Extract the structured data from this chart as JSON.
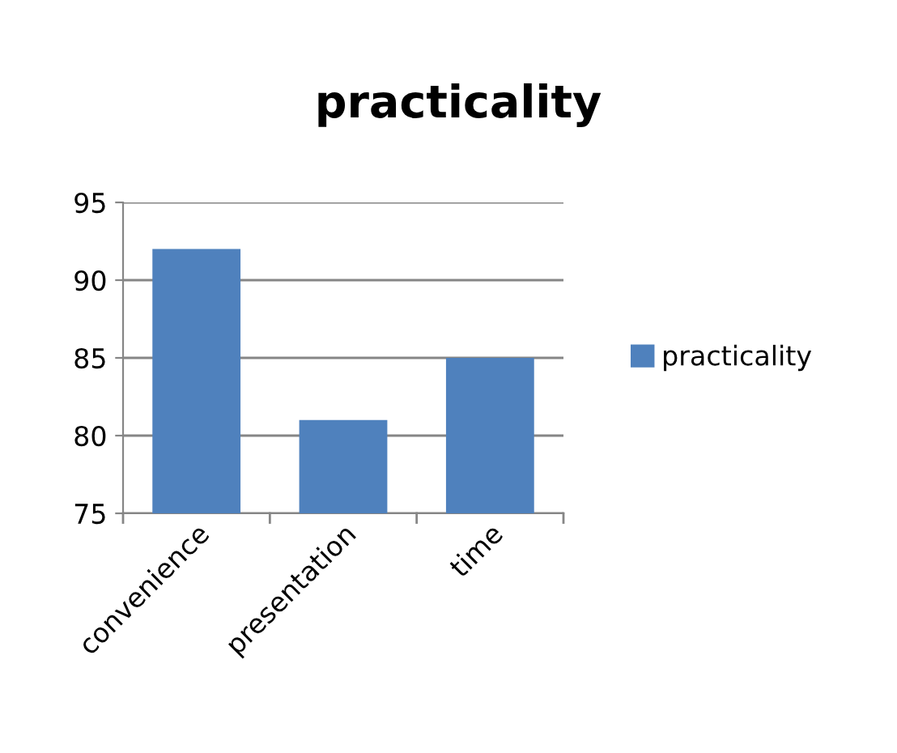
{
  "chart_data": {
    "type": "bar",
    "title": "practicality",
    "categories": [
      "convenience",
      "presentation",
      "time"
    ],
    "series": [
      {
        "name": "practicality",
        "color": "#4f81bd",
        "values": [
          92,
          81,
          85
        ]
      }
    ],
    "ylim": [
      75,
      95
    ],
    "yticks": [
      75,
      80,
      85,
      90,
      95
    ],
    "grid": "y",
    "legend": "right"
  }
}
